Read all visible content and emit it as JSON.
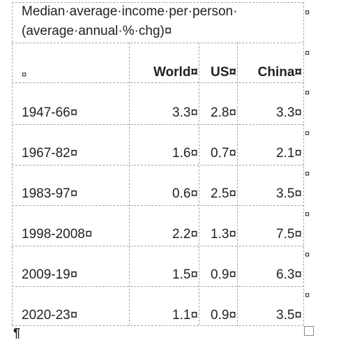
{
  "table": {
    "title_line1": "Median·average·income·per·person·",
    "title_line2": "(average·annual·%·chg)¤",
    "header": {
      "blank": "¤",
      "world": "World¤",
      "us": "US¤",
      "china": "China¤"
    },
    "rows": [
      {
        "period": "1947-66¤",
        "world": "3.3¤",
        "us": "2.8¤",
        "china": "3.3¤"
      },
      {
        "period": "1967-82¤",
        "world": "1.6¤",
        "us": "0.7¤",
        "china": "2.1¤"
      },
      {
        "period": "1983-97¤",
        "world": "0.6¤",
        "us": "2.5¤",
        "china": "3.5¤"
      },
      {
        "period": "1998-2008¤",
        "world": "2.2¤",
        "us": "1.3¤",
        "china": "7.5¤"
      },
      {
        "period": "2009-19¤",
        "world": "1.5¤",
        "us": "0.9¤",
        "china": "6.3¤"
      },
      {
        "period": "2020-23¤",
        "world": "1.1¤",
        "us": "0.9¤",
        "china": "3.5¤"
      }
    ],
    "end_of_row_mark": "¤"
  },
  "paragraph_mark": "¶"
}
